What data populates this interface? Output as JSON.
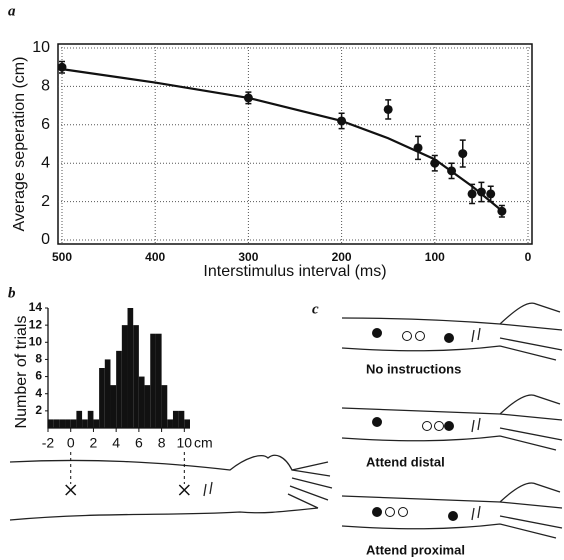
{
  "chart_data": [
    {
      "type": "scatter",
      "panel_label": "a",
      "x_label": "Interstimulus interval (ms)",
      "y_label": "Average seperation (cm)",
      "x": [
        500,
        300,
        200,
        150,
        118,
        100,
        82,
        70,
        60,
        50,
        40,
        28
      ],
      "values": [
        9.0,
        7.4,
        6.2,
        6.8,
        4.8,
        4.0,
        3.6,
        4.5,
        2.4,
        2.5,
        2.4,
        1.5
      ],
      "errors": [
        0.3,
        0.3,
        0.4,
        0.5,
        0.6,
        0.4,
        0.4,
        0.7,
        0.5,
        0.5,
        0.4,
        0.3
      ],
      "fit": {
        "x": [
          500,
          400,
          300,
          200,
          150,
          100,
          60,
          30
        ],
        "values": [
          8.9,
          8.2,
          7.4,
          6.2,
          5.3,
          4.2,
          2.8,
          1.6
        ]
      },
      "color": "#111111",
      "xlim": [
        500,
        0
      ],
      "xticks": [
        500,
        400,
        300,
        200,
        100,
        0
      ],
      "ylim": [
        0,
        10
      ],
      "yticks": [
        0,
        2,
        4,
        6,
        8,
        10
      ],
      "grid": true
    },
    {
      "type": "histogram",
      "panel_label": "b",
      "y_label": "Number of trials",
      "x_unit": "cm",
      "bins": [
        -2,
        -1.5,
        -1,
        -0.5,
        0,
        0.5,
        1,
        1.5,
        2,
        2.5,
        3,
        3.5,
        4,
        4.5,
        5,
        5.5,
        6,
        6.5,
        7,
        7.5,
        8,
        8.5,
        9,
        9.5,
        10,
        10.5
      ],
      "counts": [
        1,
        1,
        1,
        1,
        1,
        2,
        1,
        2,
        1,
        7,
        8,
        5,
        9,
        12,
        14,
        12,
        6,
        5,
        11,
        11,
        5,
        1,
        2,
        2,
        1
      ],
      "color": "#111111",
      "xlim": [
        -2,
        10.5
      ],
      "xticks": [
        -2,
        0,
        2,
        4,
        6,
        8,
        10
      ],
      "ylim": [
        0,
        14
      ],
      "yticks": [
        2,
        4,
        6,
        8,
        10,
        12,
        14
      ],
      "markers_x": [
        0,
        10
      ]
    }
  ],
  "diagram": {
    "panel_label": "c",
    "labels": [
      "No instructions",
      "Attend distal",
      "Attend proximal"
    ]
  }
}
